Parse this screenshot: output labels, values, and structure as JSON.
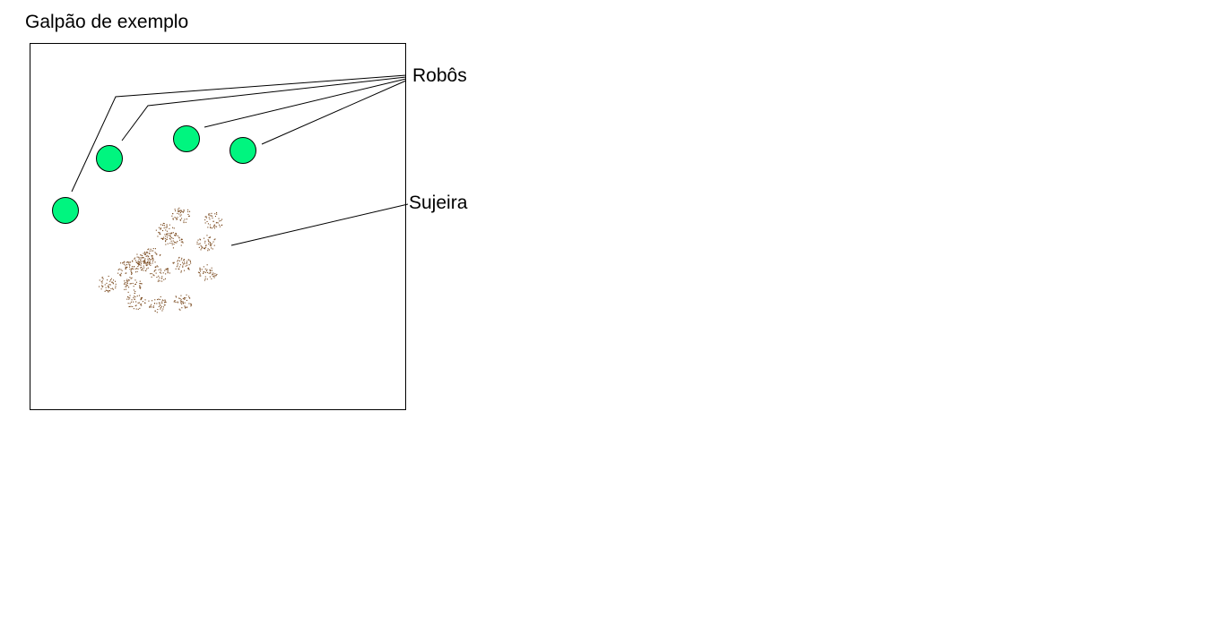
{
  "title": "Galpão de exemplo",
  "labels": {
    "robots": "Robôs",
    "dirt": "Sujeira"
  },
  "colors": {
    "robot_fill": "#00f57f",
    "robot_stroke": "#000000",
    "dirt": "#7a4a1e",
    "line": "#000000",
    "border": "#000000"
  },
  "legend": {
    "robot_count": 4,
    "dirt_patch_count": 17
  }
}
